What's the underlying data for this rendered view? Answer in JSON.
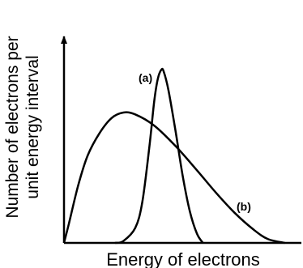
{
  "chart_data": {
    "type": "line",
    "title": "",
    "xlabel": "Energy of electrons",
    "ylabel_line1": "Number of electrons per",
    "ylabel_line2": "unit energy interval",
    "xlim": [
      0,
      1
    ],
    "ylim": [
      0,
      1
    ],
    "grid": false,
    "axis_color": "#000000",
    "series": [
      {
        "name": "(a)",
        "color": "#000000",
        "points": [
          [
            0.215,
            0.0
          ],
          [
            0.25,
            0.01
          ],
          [
            0.3,
            0.08
          ],
          [
            0.33,
            0.22
          ],
          [
            0.36,
            0.52
          ],
          [
            0.38,
            0.76
          ],
          [
            0.395,
            0.88
          ],
          [
            0.41,
            0.93
          ],
          [
            0.42,
            0.92
          ],
          [
            0.44,
            0.82
          ],
          [
            0.47,
            0.6
          ],
          [
            0.5,
            0.36
          ],
          [
            0.53,
            0.17
          ],
          [
            0.56,
            0.05
          ],
          [
            0.585,
            0.0
          ]
        ]
      },
      {
        "name": "(b)",
        "color": "#000000",
        "points": [
          [
            0.0,
            0.0
          ],
          [
            0.02,
            0.1
          ],
          [
            0.06,
            0.31
          ],
          [
            0.1,
            0.47
          ],
          [
            0.15,
            0.59
          ],
          [
            0.2,
            0.67
          ],
          [
            0.25,
            0.7
          ],
          [
            0.3,
            0.69
          ],
          [
            0.38,
            0.63
          ],
          [
            0.47,
            0.52
          ],
          [
            0.56,
            0.39
          ],
          [
            0.64,
            0.27
          ],
          [
            0.72,
            0.16
          ],
          [
            0.8,
            0.07
          ],
          [
            0.86,
            0.02
          ],
          [
            0.93,
            0.0
          ]
        ]
      }
    ]
  }
}
